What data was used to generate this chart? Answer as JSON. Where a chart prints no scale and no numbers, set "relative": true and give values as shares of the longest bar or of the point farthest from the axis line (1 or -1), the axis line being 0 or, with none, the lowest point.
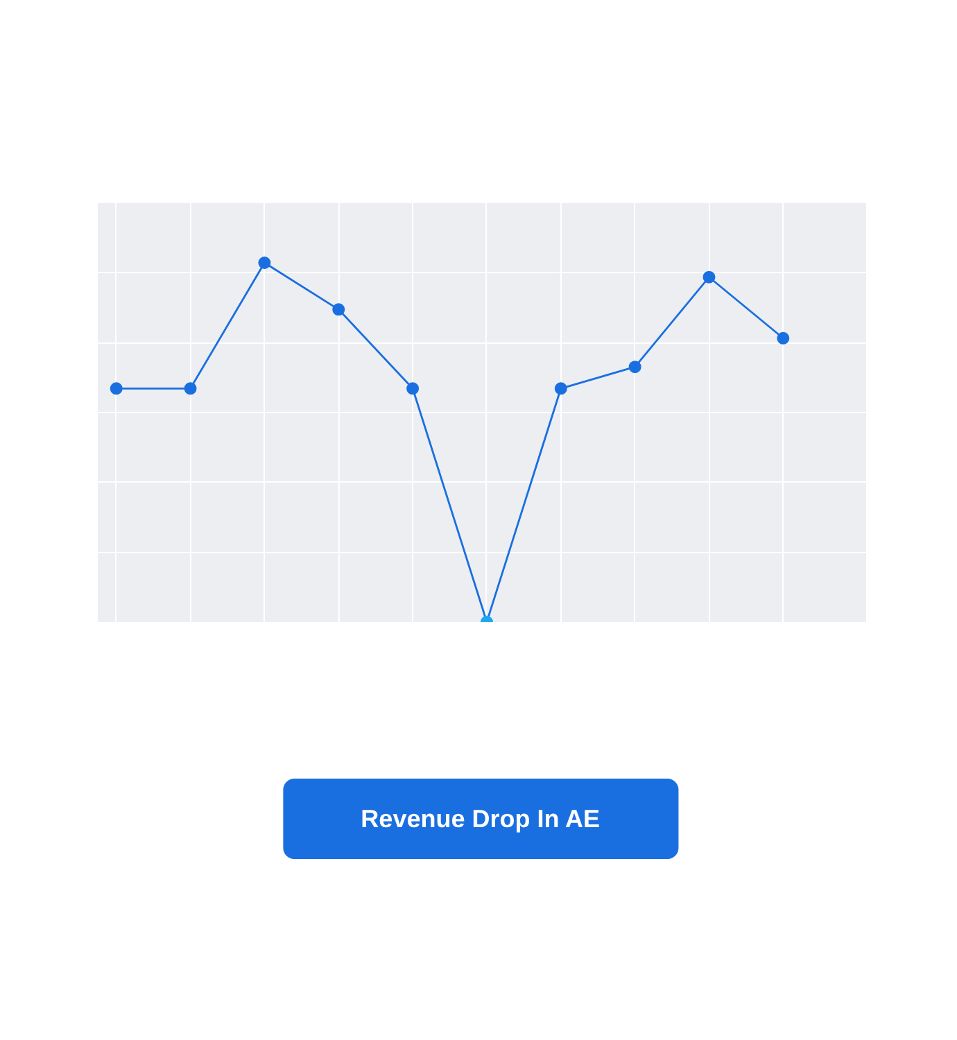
{
  "chart_data": {
    "type": "line",
    "relative": true,
    "tick_labels": false,
    "grid": true,
    "marker": "circle",
    "line_style": "solid",
    "categories": [
      null,
      null,
      null,
      null,
      null,
      null,
      null,
      null,
      null,
      null
    ],
    "series": [
      {
        "color": "#1a6fe0",
        "colors": [
          "#1a6fe0",
          "#1a6fe0",
          "#1a6fe0",
          "#1a6fe0",
          "#1a6fe0",
          "#1ea7f0",
          "#1a6fe0",
          "#1a6fe0",
          "#1a6fe0",
          "#1a6fe0"
        ],
        "values": [
          0.65,
          0.65,
          1,
          0.87,
          0.65,
          0,
          0.65,
          0.71,
          0.96,
          0.79
        ]
      }
    ],
    "annotations": [
      "Revenue Drop In AE"
    ]
  }
}
